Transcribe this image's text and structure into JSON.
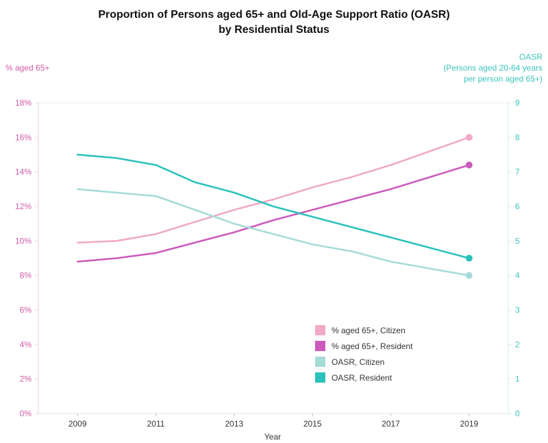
{
  "chart_data": {
    "type": "line",
    "title": [
      "Proportion of Persons aged 65+ and Old-Age Support Ratio (OASR)",
      "by Residential Status"
    ],
    "xlabel": "Year",
    "ylabel_left": "% aged 65+",
    "ylabel_right": [
      "OASR",
      "(Persons aged 20-64 years",
      "per person aged 65+)"
    ],
    "x": [
      2009,
      2010,
      2011,
      2012,
      2013,
      2014,
      2015,
      2016,
      2017,
      2018,
      2019
    ],
    "x_ticks": [
      "2009",
      "2011",
      "2013",
      "2015",
      "2017",
      "2019"
    ],
    "xlim": [
      2008,
      2020
    ],
    "ylim_left": [
      0,
      18
    ],
    "ylim_right": [
      0,
      9
    ],
    "y_ticks_left": [
      "0%",
      "2%",
      "4%",
      "6%",
      "8%",
      "10%",
      "12%",
      "14%",
      "16%",
      "18%"
    ],
    "y_ticks_right": [
      "0",
      "1",
      "2",
      "3",
      "4",
      "5",
      "6",
      "7",
      "8",
      "9"
    ],
    "series": [
      {
        "name": "% aged 65+, Citizen",
        "axis": "left",
        "color": "#f0aac8",
        "values": [
          9.9,
          10.0,
          10.4,
          11.1,
          11.8,
          12.4,
          13.1,
          13.7,
          14.4,
          15.2,
          16.0
        ]
      },
      {
        "name": "% aged 65+, Resident",
        "axis": "left",
        "color": "#cc5cbc",
        "values": [
          8.8,
          9.0,
          9.3,
          9.9,
          10.5,
          11.2,
          11.8,
          12.4,
          13.0,
          13.7,
          14.4
        ]
      },
      {
        "name": "OASR, Citizen",
        "axis": "right",
        "color": "#a6dbd8",
        "values": [
          6.5,
          6.4,
          6.3,
          5.9,
          5.5,
          5.2,
          4.9,
          4.7,
          4.4,
          4.2,
          4.0
        ]
      },
      {
        "name": "OASR, Resident",
        "axis": "right",
        "color": "#2cc2bc",
        "values": [
          7.5,
          7.4,
          7.2,
          6.7,
          6.4,
          6.0,
          5.7,
          5.4,
          5.1,
          4.8,
          4.5
        ]
      }
    ],
    "legend": "bottom-right",
    "grid": false
  },
  "colors": {
    "left_axis": "#d05aa8",
    "right_axis": "#3cc4bc",
    "axis_line": "#e8d0e0"
  }
}
